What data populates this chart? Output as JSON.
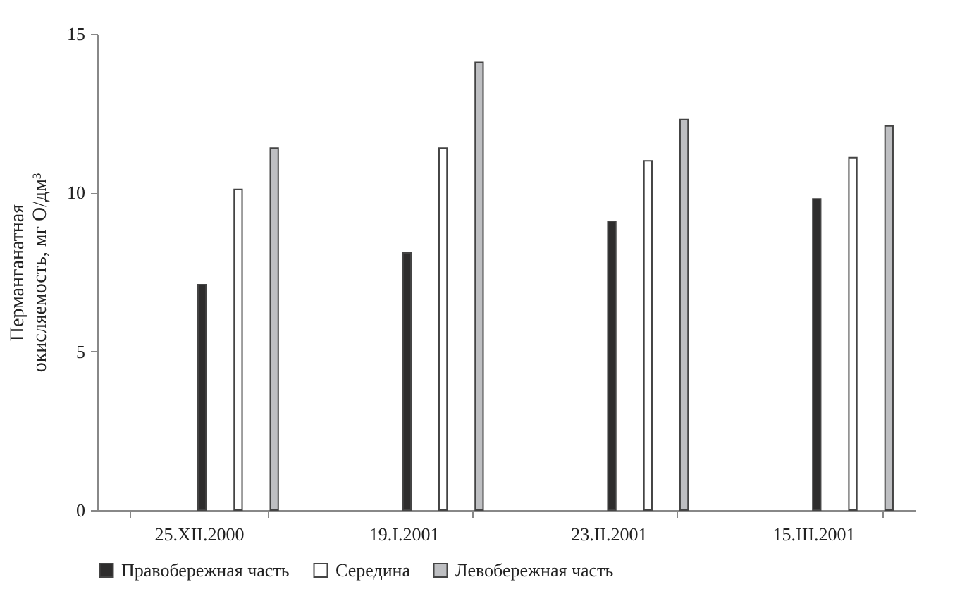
{
  "chart_data": {
    "type": "bar",
    "ylabel": "Перманганатная окисляемость, мг О/дм³",
    "categories": [
      "25.XII.2000",
      "19.I.2001",
      "23.II.2001",
      "15.III.2001"
    ],
    "series": [
      {
        "name": "Правобережная часть",
        "color": "#2e2d2d",
        "values": [
          7.1,
          8.1,
          9.1,
          9.8
        ]
      },
      {
        "name": "Середина",
        "color": "#ffffff",
        "values": [
          10.1,
          11.4,
          11.0,
          11.1
        ]
      },
      {
        "name": "Левобережная часть",
        "color": "#bebfc2",
        "values": [
          11.4,
          14.1,
          12.3,
          12.1
        ]
      }
    ],
    "ylim": [
      0,
      15
    ],
    "yticks": [
      0,
      5,
      10,
      15
    ],
    "grid": false,
    "legend": "bottom"
  }
}
